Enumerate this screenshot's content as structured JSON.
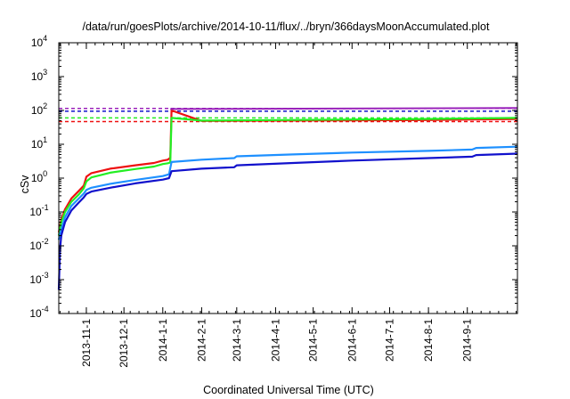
{
  "chart_data": {
    "type": "line",
    "title": "/data/run/goesPlots/archive/2014-10-11/flux/../bryn/366daysMoonAccumulated.plot",
    "xlabel": "Coordinated Universal Time (UTC)",
    "ylabel": "cSv",
    "y_scale": "log",
    "ylim": [
      0.0001,
      10000
    ],
    "xlim": [
      "2013-10-10",
      "2014-10-11"
    ],
    "grid": false,
    "legend": "none",
    "x_ticks": [
      "2013-11-1",
      "2013-12-1",
      "2014-1-1",
      "2014-2-1",
      "2014-3-1",
      "2014-4-1",
      "2014-5-1",
      "2014-6-1",
      "2014-7-1",
      "2014-8-1",
      "2014-9-1"
    ],
    "y_ticks": [
      {
        "value": 0.0001,
        "base": "10",
        "exp": "-4"
      },
      {
        "value": 0.001,
        "base": "10",
        "exp": "-3"
      },
      {
        "value": 0.01,
        "base": "10",
        "exp": "-2"
      },
      {
        "value": 0.1,
        "base": "10",
        "exp": "-1"
      },
      {
        "value": 1,
        "base": "10",
        "exp": "0"
      },
      {
        "value": 10,
        "base": "10",
        "exp": "1"
      },
      {
        "value": 100,
        "base": "10",
        "exp": "2"
      },
      {
        "value": 1000,
        "base": "10",
        "exp": "3"
      },
      {
        "value": 10000,
        "base": "10",
        "exp": "4"
      }
    ],
    "series": [
      {
        "color": "#ee1111",
        "x": [
          "2013-10-10",
          "2013-10-12",
          "2013-10-15",
          "2013-10-20",
          "2013-10-26",
          "2013-10-30",
          "2013-11-01",
          "2013-11-05",
          "2013-11-20",
          "2013-12-10",
          "2013-12-25",
          "2014-01-01",
          "2014-01-05",
          "2014-01-07",
          "2014-01-08",
          "2014-02-01",
          "2014-04-01",
          "2014-06-01",
          "2014-08-01",
          "2014-09-05",
          "2014-10-11"
        ],
        "y": [
          0.025,
          0.06,
          0.12,
          0.25,
          0.42,
          0.6,
          1.1,
          1.4,
          1.9,
          2.4,
          2.8,
          3.3,
          3.5,
          4.0,
          100,
          49,
          50,
          51,
          52,
          54,
          56
        ]
      },
      {
        "color": "#22ee22",
        "x": [
          "2013-10-10",
          "2013-10-12",
          "2013-10-15",
          "2013-10-20",
          "2013-10-26",
          "2013-10-30",
          "2013-11-01",
          "2013-11-05",
          "2013-11-20",
          "2013-12-10",
          "2013-12-25",
          "2014-01-01",
          "2014-01-05",
          "2014-01-07",
          "2014-01-08",
          "2014-02-01",
          "2014-04-01",
          "2014-06-01",
          "2014-08-01",
          "2014-09-05",
          "2014-10-11"
        ],
        "y": [
          0.02,
          0.05,
          0.1,
          0.2,
          0.33,
          0.5,
          0.8,
          1.05,
          1.45,
          1.85,
          2.2,
          2.6,
          2.75,
          2.9,
          60,
          50,
          52,
          54,
          56,
          58,
          60
        ]
      },
      {
        "color": "#1e90ff",
        "x": [
          "2013-10-10",
          "2013-10-12",
          "2013-10-15",
          "2013-10-20",
          "2013-10-26",
          "2013-10-30",
          "2013-11-01",
          "2013-11-05",
          "2013-11-20",
          "2013-12-10",
          "2014-01-01",
          "2014-01-06",
          "2014-01-08",
          "2014-02-01",
          "2014-02-27",
          "2014-03-01",
          "2014-04-15",
          "2014-06-01",
          "2014-08-01",
          "2014-09-05",
          "2014-09-08",
          "2014-10-11"
        ],
        "y": [
          0.015,
          0.03,
          0.07,
          0.15,
          0.25,
          0.35,
          0.45,
          0.52,
          0.68,
          0.88,
          1.15,
          1.3,
          3.0,
          3.5,
          3.9,
          4.4,
          5.0,
          5.7,
          6.4,
          7.0,
          7.8,
          8.5
        ]
      },
      {
        "color": "#1111cc",
        "x": [
          "2013-10-10",
          "2013-10-11",
          "2013-10-12",
          "2013-10-15",
          "2013-10-20",
          "2013-10-26",
          "2013-10-30",
          "2013-11-01",
          "2013-11-05",
          "2013-11-20",
          "2013-12-10",
          "2014-01-01",
          "2014-01-06",
          "2014-01-08",
          "2014-02-01",
          "2014-02-27",
          "2014-03-01",
          "2014-04-15",
          "2014-06-01",
          "2014-08-01",
          "2014-09-05",
          "2014-09-08",
          "2014-10-11"
        ],
        "y": [
          0.0005,
          0.008,
          0.02,
          0.05,
          0.11,
          0.19,
          0.27,
          0.34,
          0.4,
          0.52,
          0.7,
          0.9,
          1.0,
          1.6,
          1.9,
          2.1,
          2.4,
          2.8,
          3.3,
          3.9,
          4.3,
          4.8,
          5.3
        ]
      }
    ],
    "reference_lines": [
      {
        "color": "#9922bb",
        "value": 115,
        "style": "dashed"
      },
      {
        "color": "#1111cc",
        "value": 95,
        "style": "dashed"
      },
      {
        "color": "#22ee22",
        "value": 60,
        "style": "dashed"
      },
      {
        "color": "#ee1111",
        "value": 47,
        "style": "dashed"
      }
    ],
    "overlay_line": {
      "color": "#9922bb",
      "x": [
        "2014-01-07",
        "2014-10-11"
      ],
      "y": [
        110,
        118
      ]
    }
  }
}
